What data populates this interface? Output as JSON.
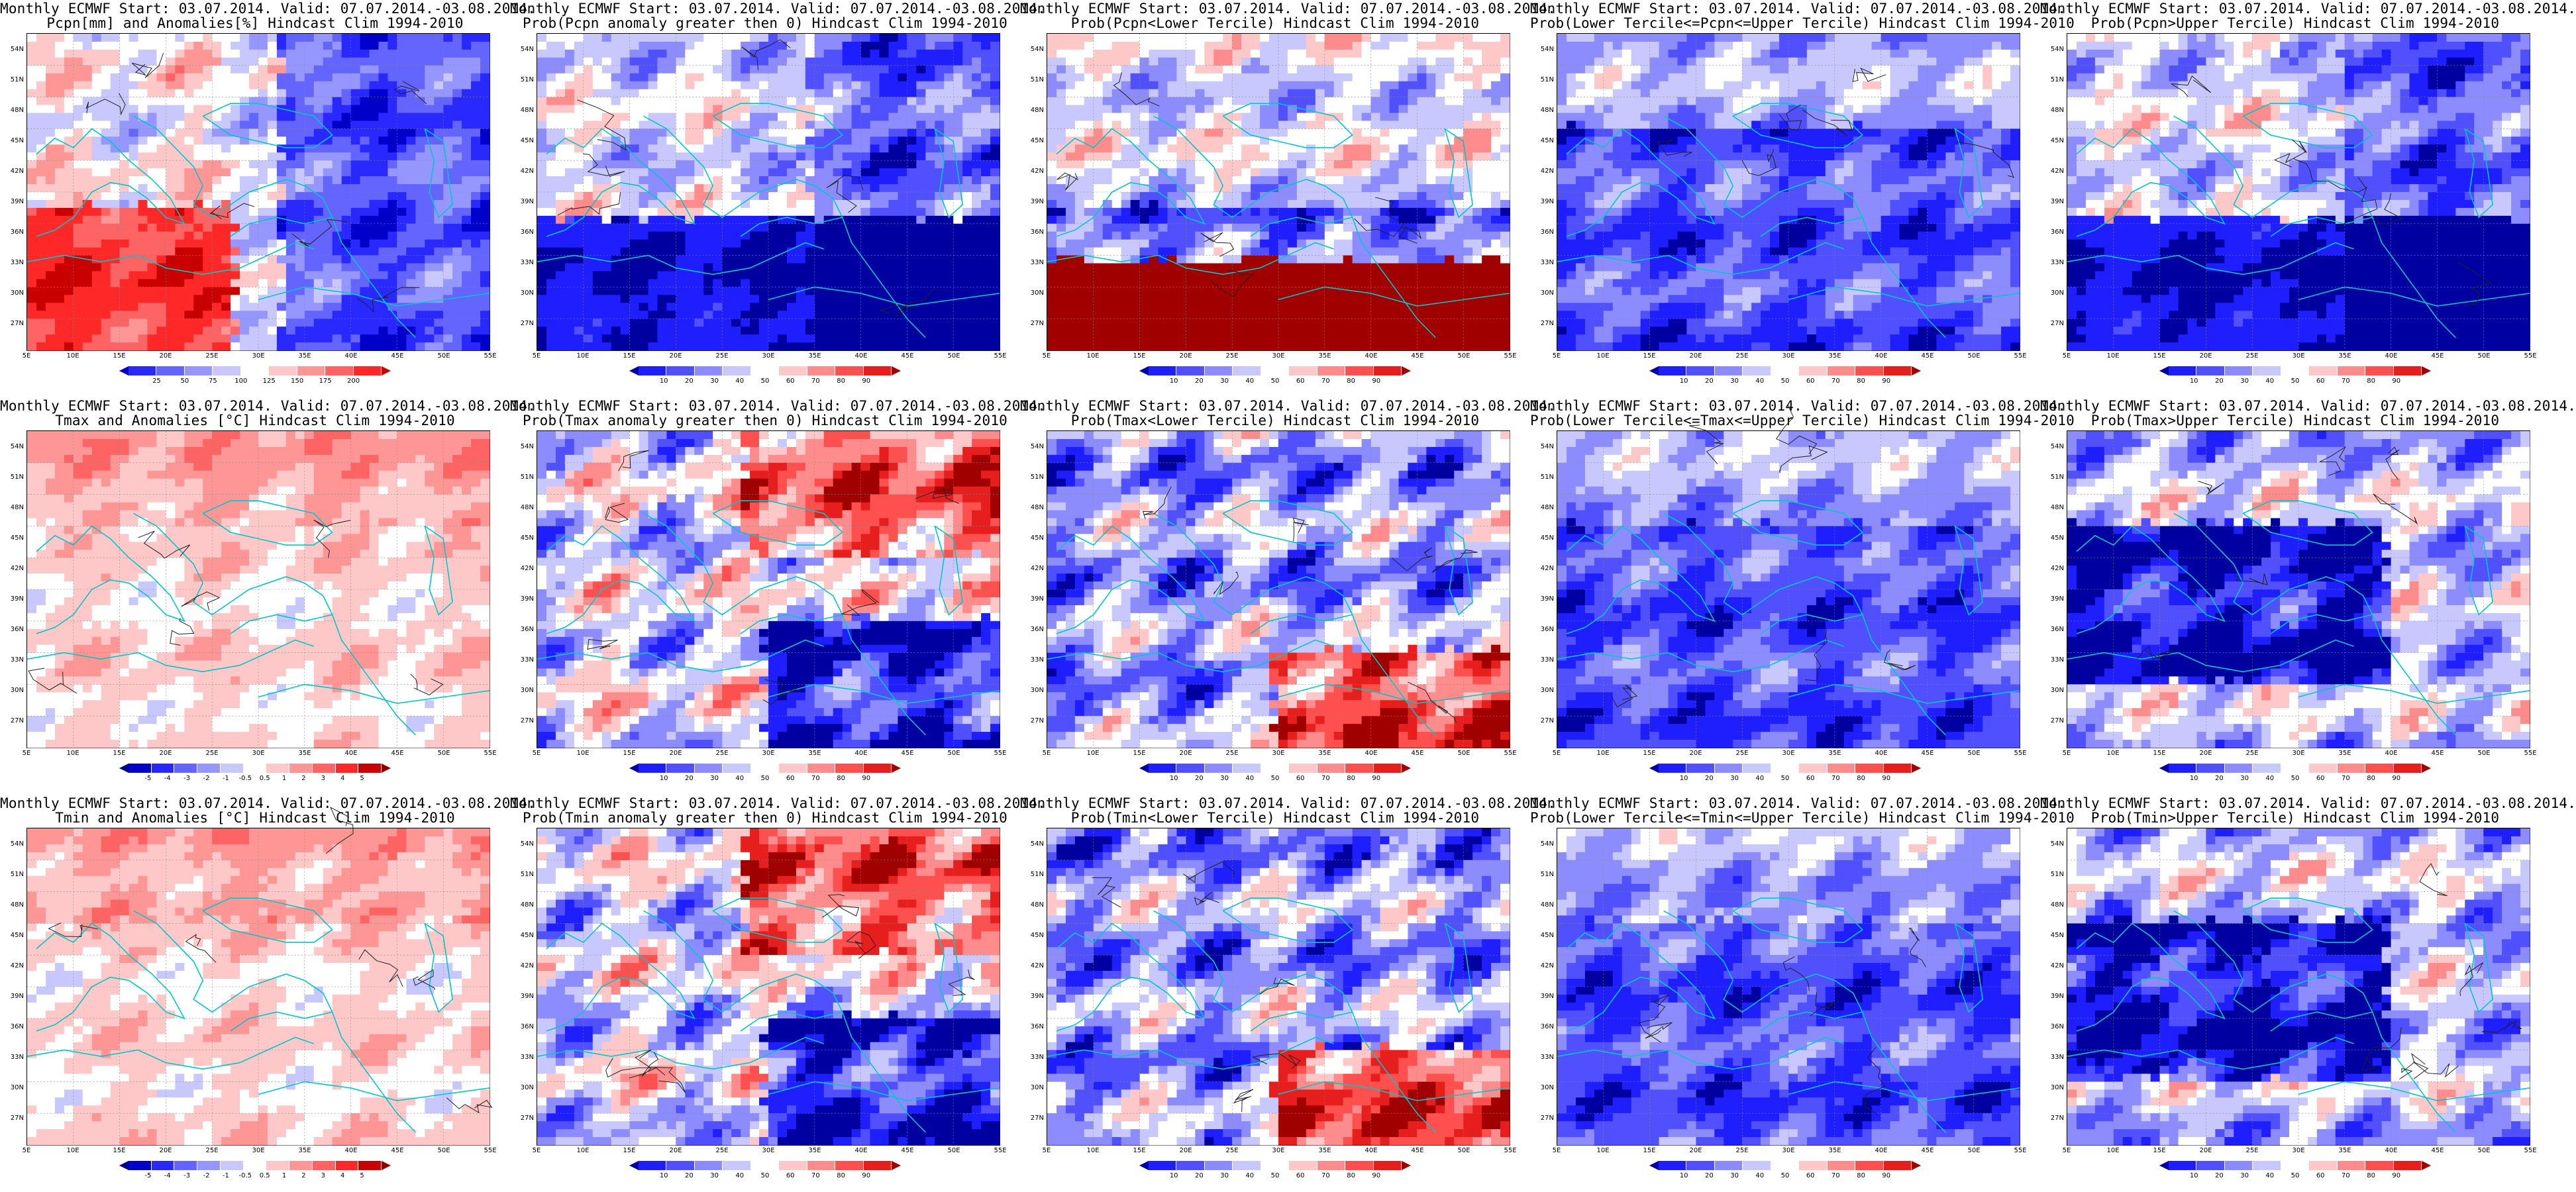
{
  "page": {
    "columns": 5,
    "rows": 3
  },
  "map_frame": {
    "lat_labels": [
      "54N",
      "51N",
      "48N",
      "45N",
      "42N",
      "39N",
      "36N",
      "33N",
      "30N",
      "27N"
    ],
    "lon_labels": [
      "5E",
      "10E",
      "15E",
      "20E",
      "25E",
      "30E",
      "35E",
      "40E",
      "45E",
      "50E",
      "55E"
    ],
    "lat_range": [
      25,
      55
    ],
    "lon_range": [
      5,
      55
    ]
  },
  "colorbars": {
    "pcpn_anom": {
      "ticks": [
        "25",
        "50",
        "75",
        "100",
        "125",
        "150",
        "175",
        "200"
      ],
      "colors": [
        "#0000c8",
        "#2828ff",
        "#6464ff",
        "#9696ff",
        "#c8c8ff",
        "#ffffff",
        "#ffc8c8",
        "#ff9696",
        "#ff6464",
        "#ff2828",
        "#c80000"
      ]
    },
    "temp_anom": {
      "ticks": [
        "-5",
        "-4",
        "-3",
        "-2",
        "-1",
        "-0.5",
        "0.5",
        "1",
        "2",
        "3",
        "4",
        "5"
      ],
      "colors": [
        "#00008c",
        "#0000c8",
        "#2828ff",
        "#6464ff",
        "#9696ff",
        "#c8c8ff",
        "#ffffff",
        "#ffc8c8",
        "#ff9696",
        "#ff6464",
        "#ff2828",
        "#c80000",
        "#8c0000"
      ]
    },
    "prob": {
      "ticks": [
        "10",
        "20",
        "30",
        "40",
        "50",
        "60",
        "70",
        "80",
        "90"
      ],
      "colors": [
        "#0000a0",
        "#1e1eff",
        "#5050ff",
        "#8c8cff",
        "#c8c8ff",
        "#ffffff",
        "#ffc8c8",
        "#ff8c8c",
        "#ff5050",
        "#e61e1e",
        "#a00000"
      ]
    }
  },
  "panels": [
    {
      "title1": "Monthly ECMWF Start: 03.07.2014. Valid: 07.07.2014.-03.08.2014.",
      "title2": "Pcpn[mm] and Anomalies[%] Hindcast Clim 1994-2010",
      "cbar": "pcpn_anom",
      "pattern": "pcpn",
      "seed": 1
    },
    {
      "title1": "Monthly ECMWF Start: 03.07.2014. Valid: 07.07.2014.-03.08.2014.",
      "title2": "Prob(Pcpn anomaly greater then 0) Hindcast Clim 1994-2010",
      "cbar": "prob",
      "pattern": "blue_south",
      "seed": 2
    },
    {
      "title1": "Monthly ECMWF Start: 03.07.2014. Valid: 07.07.2014.-03.08.2014.",
      "title2": "Prob(Pcpn<Lower Tercile) Hindcast Clim 1994-2010",
      "cbar": "prob",
      "pattern": "red_south",
      "seed": 3
    },
    {
      "title1": "Monthly ECMWF Start: 03.07.2014. Valid: 07.07.2014.-03.08.2014.",
      "title2": "Prob(Lower Tercile<=Pcpn<=Upper Tercile) Hindcast Clim 1994-2010",
      "cbar": "prob",
      "pattern": "blue_all",
      "seed": 4
    },
    {
      "title1": "Monthly ECMWF Start: 03.07.2014. Valid: 07.07.2014.-03.08.2014.",
      "title2": "Prob(Pcpn>Upper Tercile) Hindcast Clim 1994-2010",
      "cbar": "prob",
      "pattern": "blue_south",
      "seed": 5
    },
    {
      "title1": "Monthly ECMWF Start: 03.07.2014. Valid: 07.07.2014.-03.08.2014.",
      "title2": "Tmax and Anomalies [°C] Hindcast Clim 1994-2010",
      "cbar": "temp_anom",
      "pattern": "pale",
      "seed": 6
    },
    {
      "title1": "Monthly ECMWF Start: 03.07.2014. Valid: 07.07.2014.-03.08.2014.",
      "title2": "Prob(Tmax anomaly greater then 0) Hindcast Clim 1994-2010",
      "cbar": "prob",
      "pattern": "mixed_red",
      "seed": 7
    },
    {
      "title1": "Monthly ECMWF Start: 03.07.2014. Valid: 07.07.2014.-03.08.2014.",
      "title2": "Prob(Tmax<Lower Tercile) Hindcast Clim 1994-2010",
      "cbar": "prob",
      "pattern": "mixed_blue",
      "seed": 8
    },
    {
      "title1": "Monthly ECMWF Start: 03.07.2014. Valid: 07.07.2014.-03.08.2014.",
      "title2": "Prob(Lower Tercile<=Tmax<=Upper Tercile) Hindcast Clim 1994-2010",
      "cbar": "prob",
      "pattern": "blue_all",
      "seed": 9
    },
    {
      "title1": "Monthly ECMWF Start: 03.07.2014. Valid: 07.07.2014.-03.08.2014.",
      "title2": "Prob(Tmax>Upper Tercile) Hindcast Clim 1994-2010",
      "cbar": "prob",
      "pattern": "blue_center",
      "seed": 10
    },
    {
      "title1": "Monthly ECMWF Start: 03.07.2014. Valid: 07.07.2014.-03.08.2014.",
      "title2": "Tmin and Anomalies [°C] Hindcast Clim 1994-2010",
      "cbar": "temp_anom",
      "pattern": "pale",
      "seed": 11
    },
    {
      "title1": "Monthly ECMWF Start: 03.07.2014. Valid: 07.07.2014.-03.08.2014.",
      "title2": "Prob(Tmin anomaly greater then 0) Hindcast Clim 1994-2010",
      "cbar": "prob",
      "pattern": "mixed_red",
      "seed": 12
    },
    {
      "title1": "Monthly ECMWF Start: 03.07.2014. Valid: 07.07.2014.-03.08.2014.",
      "title2": "Prob(Tmin<Lower Tercile) Hindcast Clim 1994-2010",
      "cbar": "prob",
      "pattern": "mixed_blue",
      "seed": 13
    },
    {
      "title1": "Monthly ECMWF Start: 03.07.2014. Valid: 07.07.2014.-03.08.2014.",
      "title2": "Prob(Lower Tercile<=Tmin<=Upper Tercile) Hindcast Clim 1994-2010",
      "cbar": "prob",
      "pattern": "blue_all",
      "seed": 14
    },
    {
      "title1": "Monthly ECMWF Start: 03.07.2014. Valid: 07.07.2014.-03.08.2014.",
      "title2": "Prob(Tmin>Upper Tercile) Hindcast Clim 1994-2010",
      "cbar": "prob",
      "pattern": "blue_center",
      "seed": 15
    }
  ]
}
